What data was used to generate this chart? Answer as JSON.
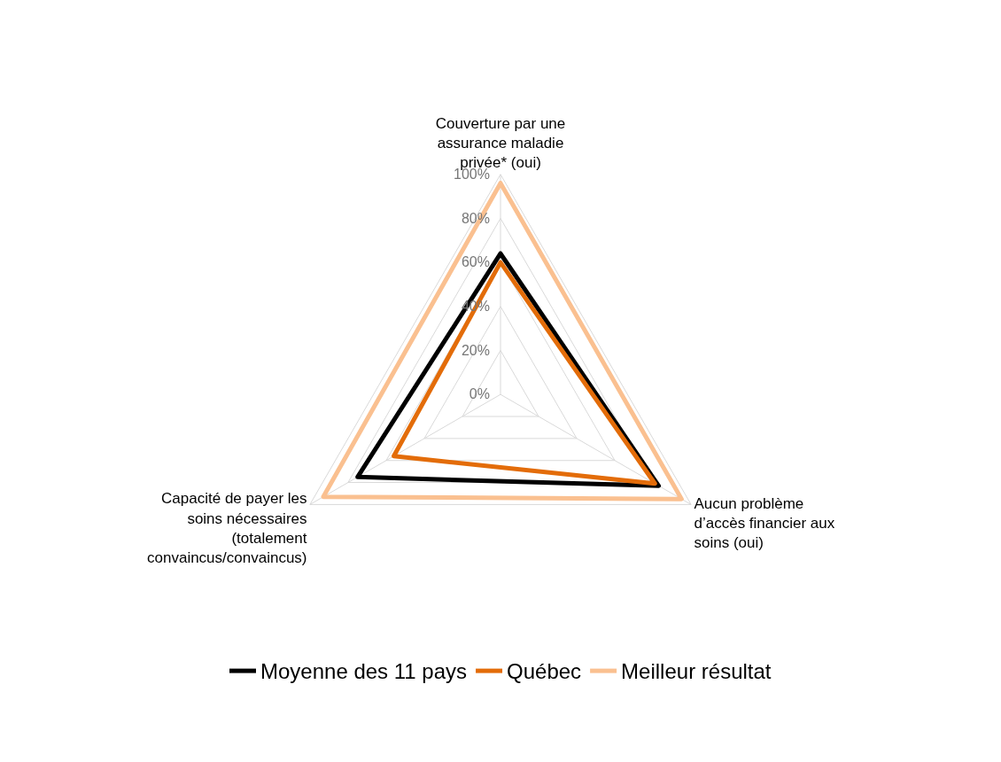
{
  "chart_data": {
    "type": "radar",
    "categories": [
      "Couverture par une\nassurance maladie\nprivée* (oui)",
      "Aucun problème\nd’accès financier aux\nsoins (oui)",
      "Capacité de payer les\nsoins nécessaires\n(totalement\nconvaincus/convaincus)"
    ],
    "series": [
      {
        "name": "Moyenne des 11 pays",
        "color": "#000000",
        "values": [
          64,
          83,
          75
        ]
      },
      {
        "name": "Québec",
        "color": "#e36c09",
        "values": [
          60,
          81,
          56
        ]
      },
      {
        "name": "Meilleur résultat",
        "color": "#fac090",
        "values": [
          96,
          95,
          93
        ]
      }
    ],
    "ylim": [
      0,
      100
    ],
    "yticks": [
      {
        "value": 0,
        "label": "0%"
      },
      {
        "value": 20,
        "label": "20%"
      },
      {
        "value": 40,
        "label": "40%"
      },
      {
        "value": 60,
        "label": "60%"
      },
      {
        "value": 80,
        "label": "80%"
      },
      {
        "value": 100,
        "label": "100%"
      }
    ],
    "grid": true,
    "legend": "bottom",
    "marker": "none",
    "line_style": "solid"
  }
}
